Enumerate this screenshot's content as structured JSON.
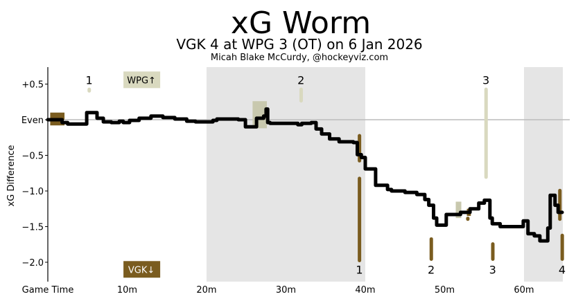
{
  "chart_data": {
    "type": "line",
    "title": "xG Worm",
    "subtitle": "VGK 4 at WPG 3 (OT) on 6 Jan 2026",
    "credit": "Micah Blake McCurdy, @hockeyviz.com",
    "ylabel": "xG Difference",
    "xlim": [
      0,
      65
    ],
    "ylim": [
      -2.25,
      0.75
    ],
    "x_ticks": [
      {
        "x": 0,
        "label": "Game Time"
      },
      {
        "x": 10,
        "label": "10m"
      },
      {
        "x": 20,
        "label": "20m"
      },
      {
        "x": 30,
        "label": "30m"
      },
      {
        "x": 40,
        "label": "40m"
      },
      {
        "x": 50,
        "label": "50m"
      },
      {
        "x": 60,
        "label": "60m"
      }
    ],
    "y_ticks": [
      {
        "y": 0.5,
        "label": "+0.5"
      },
      {
        "y": 0,
        "label": "Even"
      },
      {
        "y": -0.5,
        "label": "−0.5"
      },
      {
        "y": -1.0,
        "label": "−1.0"
      },
      {
        "y": -1.5,
        "label": "−1.5"
      },
      {
        "y": -2.0,
        "label": "−2.0"
      }
    ],
    "shaded_periods": [
      [
        20,
        40
      ],
      [
        60,
        65
      ]
    ],
    "team_labels": {
      "top": {
        "text": "WPG↑",
        "color": "#d9d9bf",
        "text_color": "#000000",
        "x": 11.8,
        "y": 0.56
      },
      "bottom": {
        "text": "VGK↓",
        "color": "#7a5c1f",
        "text_color": "#ffffff",
        "x": 11.8,
        "y": -2.1
      }
    },
    "colors": {
      "worm": "#000000",
      "wpg": "#d9d9bf",
      "vgk": "#7a5c1f",
      "wpg_box": "#c8c8ae",
      "period_shade": "#e5e5e5",
      "even_line": "#bbbbbb"
    },
    "worm": [
      [
        0,
        0
      ],
      [
        1.8,
        0
      ],
      [
        1.8,
        -0.04
      ],
      [
        2.5,
        -0.04
      ],
      [
        2.5,
        -0.06
      ],
      [
        4.9,
        -0.06
      ],
      [
        4.9,
        0.1
      ],
      [
        6.2,
        0.1
      ],
      [
        6.2,
        0.02
      ],
      [
        7.0,
        0.02
      ],
      [
        7.0,
        -0.03
      ],
      [
        8.0,
        -0.03
      ],
      [
        8.0,
        -0.04
      ],
      [
        9.0,
        -0.04
      ],
      [
        9.0,
        -0.02
      ],
      [
        9.5,
        -0.02
      ],
      [
        9.5,
        -0.04
      ],
      [
        10.3,
        -0.04
      ],
      [
        10.3,
        -0.01
      ],
      [
        11.5,
        -0.01
      ],
      [
        11.5,
        0.02
      ],
      [
        13.0,
        0.02
      ],
      [
        13.0,
        0.05
      ],
      [
        14.5,
        0.05
      ],
      [
        14.5,
        0.03
      ],
      [
        16.0,
        0.03
      ],
      [
        16.0,
        0.01
      ],
      [
        17.5,
        0.01
      ],
      [
        17.5,
        -0.02
      ],
      [
        18.6,
        -0.02
      ],
      [
        18.6,
        -0.03
      ],
      [
        20.8,
        -0.03
      ],
      [
        20.8,
        -0.01
      ],
      [
        21.3,
        -0.01
      ],
      [
        21.3,
        0.01
      ],
      [
        24.0,
        0.01
      ],
      [
        24.0,
        0
      ],
      [
        24.9,
        0
      ],
      [
        24.9,
        -0.1
      ],
      [
        26.3,
        -0.1
      ],
      [
        26.3,
        0.02
      ],
      [
        27.2,
        0.02
      ],
      [
        27.2,
        0.05
      ],
      [
        27.5,
        0.05
      ],
      [
        27.5,
        0.15
      ],
      [
        27.7,
        0.15
      ],
      [
        27.7,
        -0.04
      ],
      [
        28.0,
        -0.04
      ],
      [
        28.0,
        -0.05
      ],
      [
        31.5,
        -0.05
      ],
      [
        31.5,
        -0.07
      ],
      [
        32.0,
        -0.07
      ],
      [
        32.0,
        -0.05
      ],
      [
        33.2,
        -0.05
      ],
      [
        33.2,
        -0.04
      ],
      [
        33.8,
        -0.04
      ],
      [
        33.8,
        -0.13
      ],
      [
        34.5,
        -0.13
      ],
      [
        34.5,
        -0.2
      ],
      [
        35.5,
        -0.2
      ],
      [
        35.5,
        -0.27
      ],
      [
        36.7,
        -0.27
      ],
      [
        36.7,
        -0.31
      ],
      [
        38.5,
        -0.31
      ],
      [
        38.5,
        -0.32
      ],
      [
        39.0,
        -0.32
      ],
      [
        39.0,
        -0.49
      ],
      [
        39.5,
        -0.49
      ],
      [
        39.5,
        -0.53
      ],
      [
        40.0,
        -0.53
      ],
      [
        40.0,
        -0.69
      ],
      [
        41.3,
        -0.69
      ],
      [
        41.3,
        -0.92
      ],
      [
        42.8,
        -0.92
      ],
      [
        42.8,
        -0.98
      ],
      [
        43.3,
        -0.98
      ],
      [
        43.3,
        -1.0
      ],
      [
        45.0,
        -1.0
      ],
      [
        45.0,
        -1.02
      ],
      [
        46.5,
        -1.02
      ],
      [
        46.5,
        -1.05
      ],
      [
        47.5,
        -1.05
      ],
      [
        47.5,
        -1.12
      ],
      [
        48.0,
        -1.12
      ],
      [
        48.0,
        -1.2
      ],
      [
        48.6,
        -1.2
      ],
      [
        48.6,
        -1.38
      ],
      [
        49.0,
        -1.38
      ],
      [
        49.0,
        -1.48
      ],
      [
        50.2,
        -1.48
      ],
      [
        50.2,
        -1.33
      ],
      [
        52.0,
        -1.33
      ],
      [
        52.0,
        -1.3
      ],
      [
        53.2,
        -1.3
      ],
      [
        53.2,
        -1.25
      ],
      [
        54.3,
        -1.25
      ],
      [
        54.3,
        -1.17
      ],
      [
        55.0,
        -1.17
      ],
      [
        55.0,
        -1.13
      ],
      [
        55.7,
        -1.13
      ],
      [
        55.7,
        -1.38
      ],
      [
        56.0,
        -1.38
      ],
      [
        56.0,
        -1.46
      ],
      [
        57.0,
        -1.46
      ],
      [
        57.0,
        -1.5
      ],
      [
        59.9,
        -1.5
      ],
      [
        59.9,
        -1.42
      ],
      [
        60.5,
        -1.42
      ],
      [
        60.5,
        -1.6
      ],
      [
        61.3,
        -1.6
      ],
      [
        61.3,
        -1.63
      ],
      [
        62.0,
        -1.63
      ],
      [
        62.0,
        -1.7
      ],
      [
        63.0,
        -1.7
      ],
      [
        63.0,
        -1.52
      ],
      [
        63.3,
        -1.52
      ],
      [
        63.3,
        -1.06
      ],
      [
        63.9,
        -1.06
      ],
      [
        63.9,
        -1.2
      ],
      [
        64.3,
        -1.2
      ],
      [
        64.3,
        -1.3
      ],
      [
        64.8,
        -1.3
      ]
    ],
    "bars": [
      {
        "x": 0.3,
        "width": 1.8,
        "y0": 0,
        "y1": 0.1,
        "color": "vgk"
      },
      {
        "x": 0.3,
        "width": 1.8,
        "y0": -0.08,
        "y1": -0.02,
        "color": "vgk"
      },
      {
        "x": 5.0,
        "width": 0.3,
        "y0": 0.38,
        "y1": 0.45,
        "color": "wpg"
      },
      {
        "x": 25.8,
        "width": 1.8,
        "y0": -0.12,
        "y1": 0.26,
        "color": "wpg_box"
      },
      {
        "x": 31.7,
        "width": 0.35,
        "y0": 0.24,
        "y1": 0.45,
        "color": "wpg"
      },
      {
        "x": 39.05,
        "width": 0.2,
        "y0": -0.6,
        "y1": -0.2,
        "color": "vgk"
      },
      {
        "x": 39.05,
        "width": 0.4,
        "y0": -2.0,
        "y1": -0.8,
        "color": "vgk"
      },
      {
        "x": 48.1,
        "width": 0.4,
        "y0": -1.98,
        "y1": -1.65,
        "color": "vgk"
      },
      {
        "x": 51.4,
        "width": 0.7,
        "y0": -1.38,
        "y1": -1.15,
        "color": "wpg_box"
      },
      {
        "x": 52.7,
        "width": 0.4,
        "y0": -1.42,
        "y1": -1.36,
        "color": "vgk"
      },
      {
        "x": 52.8,
        "width": 0.5,
        "y0": -1.35,
        "y1": -1.25,
        "color": "vgk"
      },
      {
        "x": 55.0,
        "width": 0.4,
        "y0": -0.83,
        "y1": 0.45,
        "color": "wpg"
      },
      {
        "x": 55.85,
        "width": 0.4,
        "y0": -1.98,
        "y1": -1.72,
        "color": "vgk"
      },
      {
        "x": 64.3,
        "width": 0.4,
        "y0": -1.42,
        "y1": -0.97,
        "color": "vgk"
      },
      {
        "x": 64.6,
        "width": 0.4,
        "y0": -1.98,
        "y1": -1.6,
        "color": "vgk"
      }
    ],
    "goal_labels": [
      {
        "team": "WPG",
        "label": "1",
        "x": 5.2,
        "y": 0.56
      },
      {
        "team": "WPG",
        "label": "2",
        "x": 31.9,
        "y": 0.56
      },
      {
        "team": "WPG",
        "label": "3",
        "x": 55.2,
        "y": 0.56
      },
      {
        "team": "VGK",
        "label": "1",
        "x": 39.25,
        "y": -2.1
      },
      {
        "team": "VGK",
        "label": "2",
        "x": 48.3,
        "y": -2.1
      },
      {
        "team": "VGK",
        "label": "3",
        "x": 56.05,
        "y": -2.1
      },
      {
        "team": "VGK",
        "label": "4",
        "x": 64.8,
        "y": -2.1
      }
    ]
  }
}
